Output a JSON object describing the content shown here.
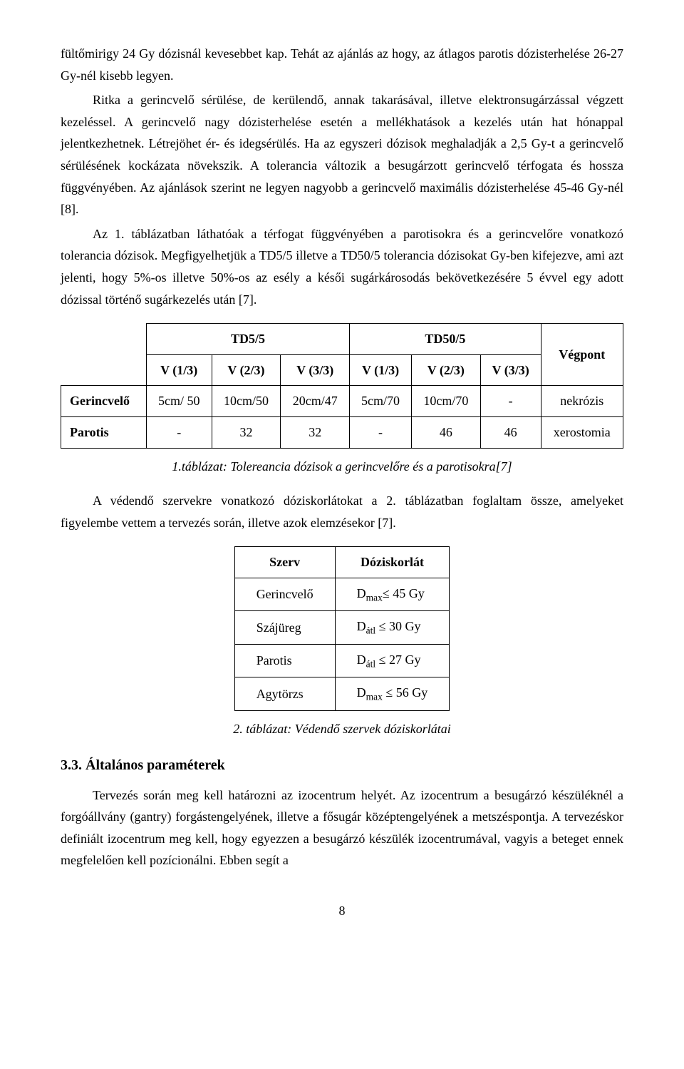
{
  "para1": "fültőmirigy 24 Gy dózisnál kevesebbet kap. Tehát az ajánlás az hogy, az átlagos parotis dózisterhelése 26-27 Gy-nél kisebb legyen.",
  "para2": "Ritka a gerincvelő sérülése, de kerülendő, annak takarásával, illetve elektronsugárzással végzett kezeléssel. A gerincvelő nagy dózisterhelése esetén a mellékhatások a kezelés után hat hónappal jelentkezhetnek. Létrejöhet ér- és idegsérülés. Ha az egyszeri dózisok meghaladják a 2,5 Gy-t a gerincvelő sérülésének kockázata növekszik. A tolerancia változik a besugárzott gerincvelő térfogata és hossza függvényében. Az ajánlások szerint ne legyen nagyobb a gerincvelő maximális dózisterhelése 45-46 Gy-nél [8].",
  "para3": "Az 1. táblázatban láthatóak a térfogat függvényében a parotisokra és a gerincvelőre vonatkozó tolerancia dózisok. Megfigyelhetjük a TD5/5 illetve a TD50/5 tolerancia dózisokat Gy-ben kifejezve, ami azt jelenti, hogy 5%-os illetve 50%-os az esély a késői sugárkárosodás bekövetkezésére 5 évvel egy adott dózissal történő sugárkezelés után [7].",
  "table1": {
    "h_td5": "TD5/5",
    "h_td50": "TD50/5",
    "h_vegpont": "Végpont",
    "sub_v13": "V (1/3)",
    "sub_v23": "V (2/3)",
    "sub_v33": "V (3/3)",
    "rows": [
      {
        "label": "Gerincvelő",
        "c": [
          "5cm/ 50",
          "10cm/50",
          "20cm/47",
          "5cm/70",
          "10cm/70",
          "-"
        ],
        "end": "nekrózis"
      },
      {
        "label": "Parotis",
        "c": [
          "-",
          "32",
          "32",
          "-",
          "46",
          "46"
        ],
        "end": "xerostomia"
      }
    ]
  },
  "caption1": "1.táblázat: Tolereancia dózisok a gerincvelőre és a parotisokra[7]",
  "para4": "A védendő szervekre vonatkozó dóziskorlátokat a 2. táblázatban foglaltam össze, amelyeket figyelembe vettem a tervezés során, illetve azok elemzésekor [7].",
  "table2": {
    "h_szerv": "Szerv",
    "h_limit": "Dóziskorlát",
    "rows": [
      {
        "organ": "Gerincvelő",
        "pre": "D",
        "sub": "max",
        "rest": "≤ 45 Gy"
      },
      {
        "organ": "Szájüreg",
        "pre": "D",
        "sub": "átl",
        "rest": " ≤ 30 Gy"
      },
      {
        "organ": "Parotis",
        "pre": "D",
        "sub": "átl",
        "rest": " ≤ 27 Gy"
      },
      {
        "organ": "Agytörzs",
        "pre": "D",
        "sub": "max",
        "rest": " ≤ 56 Gy"
      }
    ]
  },
  "caption2": "2. táblázat: Védendő szervek dóziskorlátai",
  "heading": "3.3. Általános paraméterek",
  "para5": "Tervezés során meg kell határozni az izocentrum helyét. Az izocentrum a besugárzó készüléknél a forgóállvány (gantry) forgástengelyének, illetve a fősugár középtengelyének a metszéspontja. A tervezéskor definiált izocentrum meg kell, hogy egyezzen a besugárzó készülék izocentrumával, vagyis a beteget ennek megfelelően kell pozícionálni. Ebben segít a",
  "pagenum": "8"
}
